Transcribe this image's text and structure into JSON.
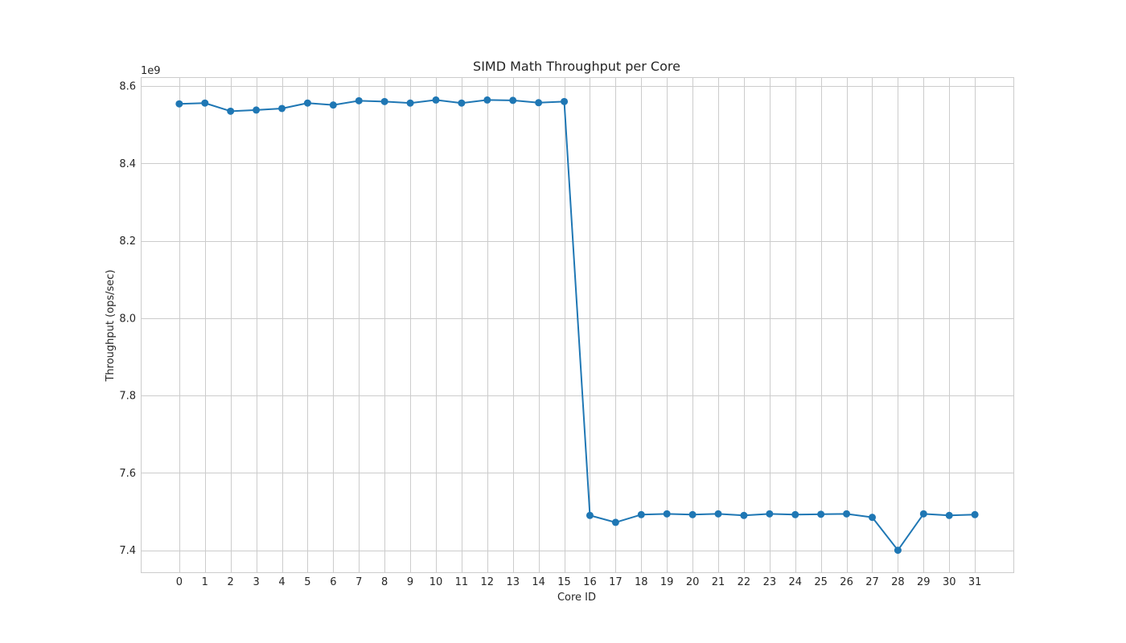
{
  "chart_data": {
    "type": "line",
    "title": "SIMD Math Throughput per Core",
    "xlabel": "Core ID",
    "ylabel": "Throughput (ops/sec)",
    "y_offset_label": "1e9",
    "x_ticks": [
      0,
      1,
      2,
      3,
      4,
      5,
      6,
      7,
      8,
      9,
      10,
      11,
      12,
      13,
      14,
      15,
      16,
      17,
      18,
      19,
      20,
      21,
      22,
      23,
      24,
      25,
      26,
      27,
      28,
      29,
      30,
      31
    ],
    "y_ticks": [
      "7.4",
      "7.6",
      "7.8",
      "8.0",
      "8.2",
      "8.4",
      "8.6"
    ],
    "y_tick_values": [
      7.4,
      7.6,
      7.8,
      8.0,
      8.2,
      8.4,
      8.6
    ],
    "xlim": [
      -1.5,
      32.5
    ],
    "ylim": [
      7.343,
      8.623
    ],
    "grid": true,
    "color": "#1f77b4",
    "series": [
      {
        "x": [
          0,
          1,
          2,
          3,
          4,
          5,
          6,
          7,
          8,
          9,
          10,
          11,
          12,
          13,
          14,
          15,
          16,
          17,
          18,
          19,
          20,
          21,
          22,
          23,
          24,
          25,
          26,
          27,
          28,
          29,
          30,
          31
        ],
        "values": [
          8.554,
          8.556,
          8.535,
          8.538,
          8.542,
          8.556,
          8.551,
          8.562,
          8.56,
          8.556,
          8.564,
          8.556,
          8.564,
          8.563,
          8.557,
          8.56,
          7.49,
          7.472,
          7.492,
          7.494,
          7.492,
          7.494,
          7.49,
          7.494,
          7.492,
          7.493,
          7.494,
          7.485,
          7.4,
          7.494,
          7.49,
          7.492
        ]
      }
    ]
  }
}
